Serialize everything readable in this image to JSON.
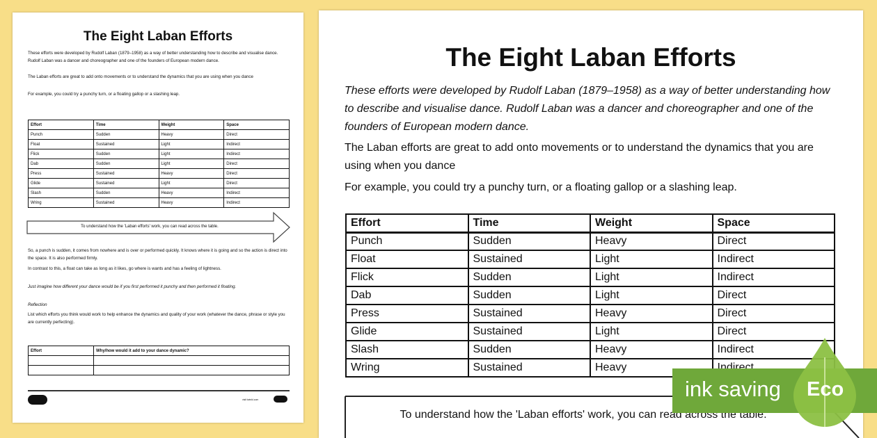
{
  "left_page": {
    "title": "The Eight Laban Efforts",
    "intro": "These efforts were developed by Rudolf Laban (1879–1958) as a way of better understanding how to describe and visualise dance. Rudolf Laban was a dancer and choreographer and one of the founders of European modern dance.",
    "intro2": "The Laban efforts are great to add onto movements or to understand the dynamics that you are using when you dance",
    "example": "For example, you could try a punchy turn, or a floating gallop or a slashing leap.",
    "arrow_text": "To understand how the 'Laban efforts' work, you can read across the table.",
    "p1": "So, a punch is sudden, it comes from nowhere and is over or performed quickly. It knows where it is going and so the action is direct into the space. It is also performed firmly.",
    "p2": "In contrast to this, a float can take as long as it likes, go where is wants and has a feeling of lightness.",
    "p3": "Just imagine how different your dance would be if you first performed it punchy and then performed it floating.",
    "reflection_heading": "Reflection",
    "p4": "List which efforts you think would work to help enhance the dynamics and quality of your work (whatever the dance, phrase or style you are currently perfecting).",
    "reflect_headers": [
      "Effort",
      "Why/how would it add to your dance dynamic?"
    ],
    "footer_url": "visit twinkl.com"
  },
  "right_page": {
    "title": "The Eight Laban Efforts",
    "intro": "These efforts were developed by Rudolf Laban (1879–1958) as a way of better understanding how to describe and visualise dance. Rudolf Laban was a dancer and choreographer and one of the founders of European modern dance.",
    "intro2": "The Laban efforts are great to add onto movements or to understand the dynamics that you are using when you dance",
    "example": "For example, you could try a punchy turn, or a floating gallop or a slashing leap.",
    "arrow_text": "To understand how the 'Laban efforts' work, you can read across the table."
  },
  "table": {
    "headers": [
      "Effort",
      "Time",
      "Weight",
      "Space"
    ],
    "rows": [
      [
        "Punch",
        "Sudden",
        "Heavy",
        "Direct"
      ],
      [
        "Float",
        "Sustained",
        "Light",
        "Indirect"
      ],
      [
        "Flick",
        "Sudden",
        "Light",
        "Indirect"
      ],
      [
        "Dab",
        "Sudden",
        "Light",
        "Direct"
      ],
      [
        "Press",
        "Sustained",
        "Heavy",
        "Direct"
      ],
      [
        "Glide",
        "Sustained",
        "Light",
        "Direct"
      ],
      [
        "Slash",
        "Sudden",
        "Heavy",
        "Indirect"
      ],
      [
        "Wring",
        "Sustained",
        "Heavy",
        "Indirect"
      ]
    ]
  },
  "badge": {
    "text": "ink saving",
    "label": "Eco",
    "color": "#6fa83a",
    "leaf_color": "#8cc043"
  }
}
